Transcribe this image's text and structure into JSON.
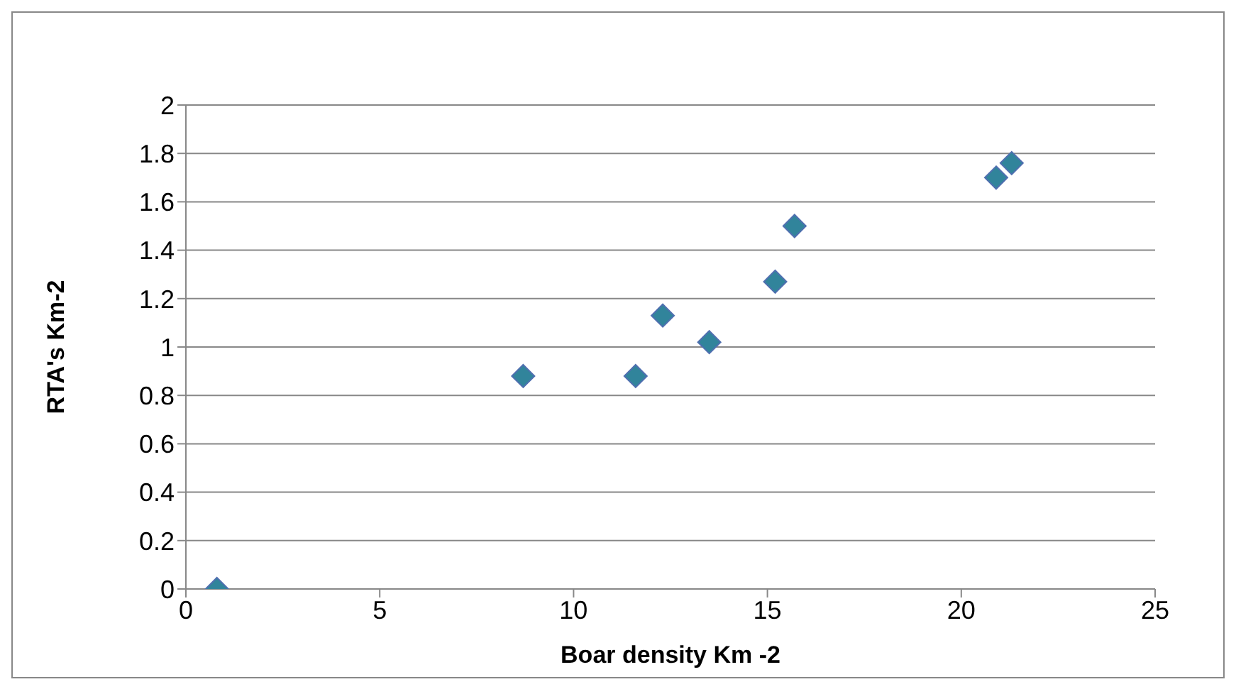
{
  "chart_data": {
    "type": "scatter",
    "xlabel": "Boar density Km -2",
    "ylabel": "RTA's Km-2",
    "x": [
      0.8,
      8.7,
      11.6,
      12.3,
      13.5,
      15.2,
      15.7,
      20.9,
      21.3
    ],
    "series": [
      {
        "color": "#31849b",
        "values": [
          0,
          0.88,
          0.88,
          1.13,
          1.02,
          1.27,
          1.5,
          1.7,
          1.76
        ]
      }
    ],
    "xlim": [
      0,
      25
    ],
    "xticks": [
      0,
      5,
      10,
      15,
      20,
      25
    ],
    "ylim": [
      0,
      2
    ],
    "yticks": [
      0,
      0.2,
      0.4,
      0.6,
      0.8,
      1,
      1.2,
      1.4,
      1.6,
      1.8,
      2
    ],
    "grid": "y",
    "marker": "diamond",
    "legend": false
  }
}
